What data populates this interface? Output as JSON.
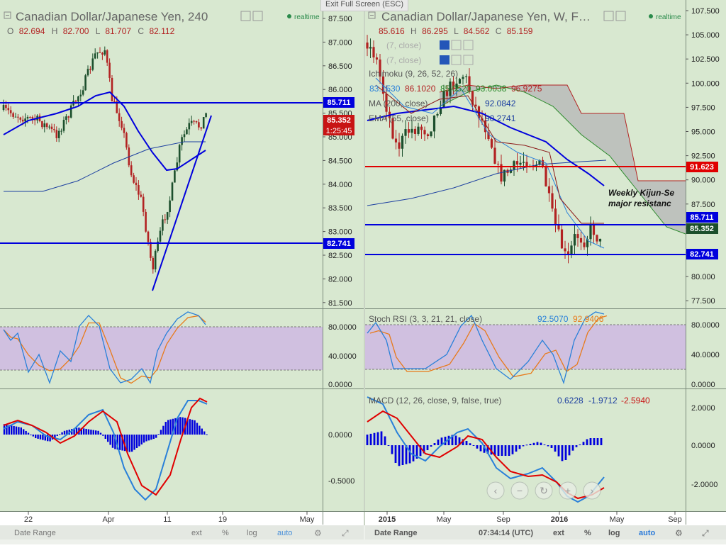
{
  "screen": {
    "exit_fullscreen": "Exit Full Screen (ESC)"
  },
  "left": {
    "title": "Canadian Dollar/Japanese Yen, 240",
    "realtime": "realtime",
    "ohlc": {
      "o_label": "O",
      "o": "82.694",
      "h_label": "H",
      "h": "82.700",
      "l_label": "L",
      "l": "81.707",
      "c_label": "C",
      "c": "82.112"
    },
    "price_ticks": [
      "87.500",
      "87.000",
      "86.500",
      "86.000",
      "85.500",
      "85.000",
      "84.500",
      "84.000",
      "83.500",
      "83.000",
      "82.500",
      "82.000",
      "81.500"
    ],
    "price_labels": {
      "line1": "85.711",
      "last": "85.352",
      "countdown": "1:25:45",
      "line2": "82.741"
    },
    "rsi_ticks": [
      "80.0000",
      "40.0000",
      "0.0000"
    ],
    "macd_ticks": [
      "0.0000",
      "-0.5000"
    ],
    "x_ticks": [
      "22",
      "Apr",
      "11",
      "19",
      "May"
    ],
    "bottom": {
      "range": "Date Range",
      "ext": "ext",
      "pct": "%",
      "log": "log",
      "auto": "auto"
    }
  },
  "right": {
    "title": "Canadian Dollar/Japanese Yen, W, F…",
    "realtime": "realtime",
    "ohlc": {
      "o": "85.616",
      "h_label": "H",
      "h": "86.295",
      "l_label": "L",
      "l": "84.562",
      "c_label": "C",
      "c": "85.159"
    },
    "ind1": "(7, close)",
    "ind2": "(7, close)",
    "ichimoku": "Ichimoku (9, 26, 52, 26)",
    "ichimoku_vals": [
      "83.1530",
      "86.1020",
      "85.0520",
      "93.0038",
      "96.9275"
    ],
    "ma": "MA (200, close)",
    "ma_val": "92.0842",
    "ema": "EMA (55, close)",
    "ema_val": "90.2741",
    "price_ticks": [
      "107.500",
      "105.000",
      "102.500",
      "100.000",
      "97.500",
      "95.000",
      "92.500",
      "90.000",
      "87.500",
      "85.000",
      "82.500",
      "80.000",
      "77.500"
    ],
    "price_labels": {
      "red": "91.623",
      "line1": "85.711",
      "last": "85.352",
      "line2": "82.741"
    },
    "annotation": [
      "Weekly Kijun-Se",
      "major resistanc"
    ],
    "stoch_label": "Stoch RSI (3, 3, 21, 21, close)",
    "stoch_vals": [
      "92.5070",
      "92.9406"
    ],
    "stoch_ticks": [
      "80.0000",
      "40.0000",
      "0.0000"
    ],
    "macd_label": "MACD (12, 26, close, 9, false, true)",
    "macd_vals": [
      "0.6228",
      "-1.9712",
      "-2.5940"
    ],
    "macd_ticks": [
      "2.0000",
      "0.0000",
      "-2.0000"
    ],
    "x_ticks": [
      "2015",
      "May",
      "Sep",
      "2016",
      "May",
      "Sep"
    ],
    "bottom": {
      "range": "Date Range",
      "time": "07:34:14 (UTC)",
      "ext": "ext",
      "pct": "%",
      "log": "log",
      "auto": "auto"
    }
  },
  "colors": {
    "bg": "#d8e8d0",
    "blue": "#0000dd",
    "red": "#e00000",
    "up": "#1c4f2c",
    "down": "#b22222",
    "cloud": "#b8b8b8",
    "band": "#d0c0e0"
  }
}
